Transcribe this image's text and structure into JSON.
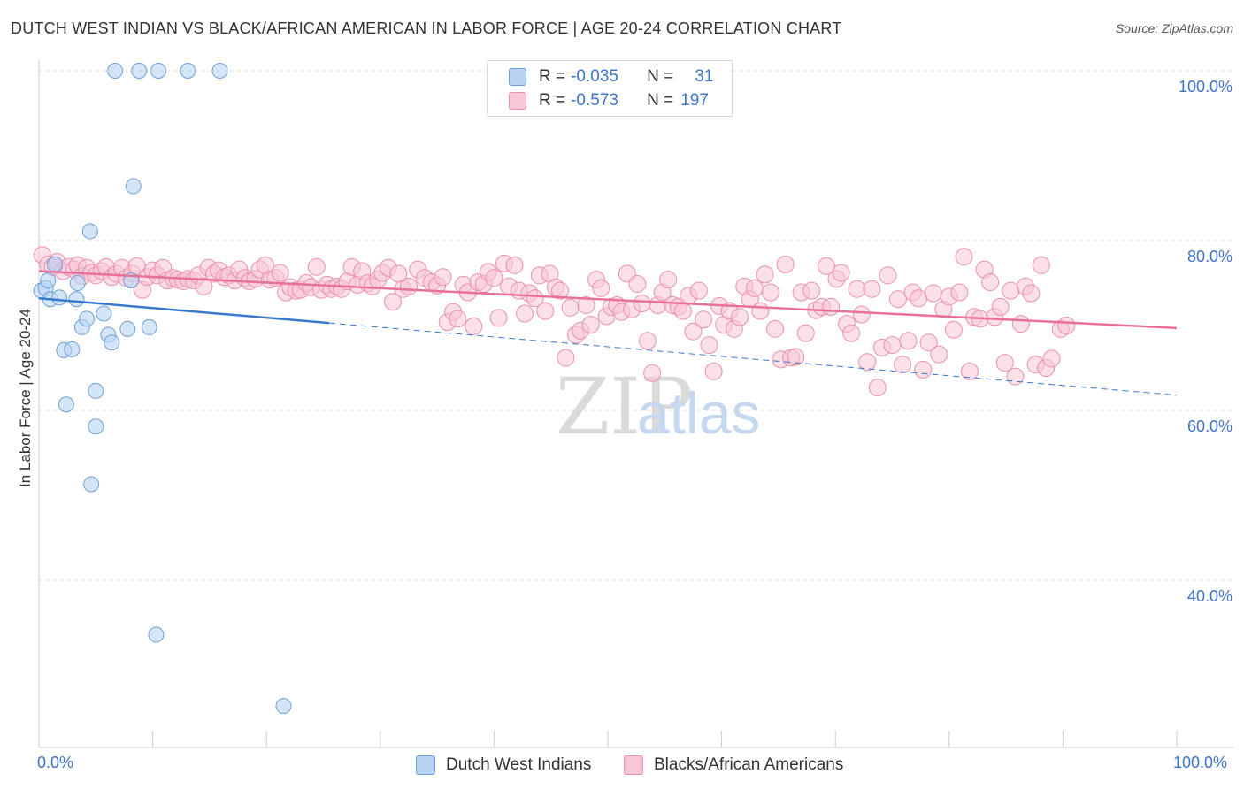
{
  "title": "DUTCH WEST INDIAN VS BLACK/AFRICAN AMERICAN IN LABOR FORCE | AGE 20-24 CORRELATION CHART",
  "source": "Source: ZipAtlas.com",
  "watermark": {
    "zip": "ZIP",
    "atlas": "atlas"
  },
  "legend": {
    "series1": {
      "r_label": "R =",
      "r_value": "-0.035",
      "n_label": "N =",
      "n_value": "31"
    },
    "series2": {
      "r_label": "R =",
      "r_value": "-0.573",
      "n_label": "N =",
      "n_value": "197"
    }
  },
  "bottom_legend": {
    "series1": "Dutch West Indians",
    "series2": "Blacks/African Americans"
  },
  "colors": {
    "series1_fill": "#b8d3f3",
    "series1_stroke": "#6f9fd8",
    "series1_line": "#3a78d0",
    "series2_fill": "#f8c7d6",
    "series2_stroke": "#ec8fac",
    "series2_line": "#e8719a",
    "tick_label": "#3d74c9",
    "grid": "#dddddd"
  },
  "chart_data": {
    "type": "scatter",
    "title": "DUTCH WEST INDIAN VS BLACK/AFRICAN AMERICAN IN LABOR FORCE | AGE 20-24 CORRELATION CHART",
    "xlabel": "",
    "ylabel": "In Labor Force | Age 20-24",
    "xlim": [
      0,
      100
    ],
    "ylim": [
      20,
      100
    ],
    "x_tick_labels": {
      "left": "0.0%",
      "right": "100.0%"
    },
    "y_ticks": [
      {
        "value": 100,
        "label": "100.0%"
      },
      {
        "value": 80,
        "label": "80.0%"
      },
      {
        "value": 60,
        "label": "60.0%"
      },
      {
        "value": 40,
        "label": "40.0%"
      }
    ],
    "series": [
      {
        "name": "Dutch West Indians",
        "r": -0.035,
        "n": 31,
        "trend": {
          "x0": 0,
          "y0": 73.2,
          "x1": 25.5,
          "y1": 70.3,
          "dash_to_x": 100,
          "dash_to_y": 61.8
        },
        "points": [
          [
            0.2,
            74.1
          ],
          [
            0.6,
            74.4
          ],
          [
            0.8,
            75.3
          ],
          [
            1.0,
            73.1
          ],
          [
            1.4,
            77.2
          ],
          [
            1.8,
            73.3
          ],
          [
            3.3,
            73.1
          ],
          [
            3.4,
            75.0
          ],
          [
            2.2,
            67.1
          ],
          [
            2.9,
            67.2
          ],
          [
            2.4,
            60.7
          ],
          [
            3.8,
            69.8
          ],
          [
            4.2,
            70.8
          ],
          [
            4.5,
            81.1
          ],
          [
            5.7,
            71.4
          ],
          [
            6.1,
            68.9
          ],
          [
            6.4,
            68.0
          ],
          [
            7.8,
            69.6
          ],
          [
            8.1,
            75.3
          ],
          [
            8.3,
            86.4
          ],
          [
            9.7,
            69.8
          ],
          [
            5.0,
            62.3
          ],
          [
            5.0,
            58.1
          ],
          [
            4.6,
            51.3
          ],
          [
            6.7,
            100.0
          ],
          [
            8.8,
            100.0
          ],
          [
            10.5,
            100.0
          ],
          [
            13.1,
            100.0
          ],
          [
            15.9,
            100.0
          ],
          [
            10.3,
            33.6
          ],
          [
            21.5,
            25.2
          ]
        ]
      },
      {
        "name": "Blacks/African Americans",
        "r": -0.573,
        "n": 197,
        "trend": {
          "x0": 0,
          "y0": 76.4,
          "x1": 100,
          "y1": 69.7
        },
        "points": [
          [
            0.3,
            78.3
          ],
          [
            0.8,
            77.2
          ],
          [
            1.2,
            76.9
          ],
          [
            1.6,
            77.5
          ],
          [
            2.1,
            76.4
          ],
          [
            2.6,
            76.9
          ],
          [
            3.1,
            76.6
          ],
          [
            3.4,
            77.1
          ],
          [
            3.8,
            75.8
          ],
          [
            4.2,
            76.8
          ],
          [
            4.6,
            76.2
          ],
          [
            5.0,
            75.9
          ],
          [
            5.5,
            76.4
          ],
          [
            5.9,
            76.9
          ],
          [
            6.4,
            75.7
          ],
          [
            6.8,
            76.1
          ],
          [
            7.3,
            76.8
          ],
          [
            7.7,
            75.6
          ],
          [
            8.2,
            76.1
          ],
          [
            8.6,
            77.0
          ],
          [
            9.1,
            74.2
          ],
          [
            9.5,
            75.7
          ],
          [
            10.0,
            76.5
          ],
          [
            10.4,
            75.9
          ],
          [
            10.9,
            76.8
          ],
          [
            11.3,
            75.3
          ],
          [
            11.8,
            75.6
          ],
          [
            12.2,
            75.4
          ],
          [
            12.7,
            75.2
          ],
          [
            13.1,
            75.5
          ],
          [
            13.6,
            75.3
          ],
          [
            14.0,
            75.9
          ],
          [
            14.5,
            74.6
          ],
          [
            14.9,
            76.8
          ],
          [
            15.4,
            76.1
          ],
          [
            15.8,
            76.5
          ],
          [
            16.3,
            75.7
          ],
          [
            16.7,
            75.9
          ],
          [
            17.2,
            75.3
          ],
          [
            17.6,
            76.6
          ],
          [
            18.1,
            75.6
          ],
          [
            18.5,
            75.2
          ],
          [
            19.0,
            75.5
          ],
          [
            19.4,
            76.6
          ],
          [
            19.9,
            77.1
          ],
          [
            20.3,
            75.4
          ],
          [
            20.8,
            75.6
          ],
          [
            21.2,
            76.2
          ],
          [
            21.7,
            73.9
          ],
          [
            22.1,
            74.5
          ],
          [
            22.6,
            74.1
          ],
          [
            23.0,
            74.2
          ],
          [
            23.5,
            75.0
          ],
          [
            23.9,
            74.5
          ],
          [
            24.4,
            76.9
          ],
          [
            24.8,
            74.2
          ],
          [
            25.3,
            74.8
          ],
          [
            25.7,
            74.3
          ],
          [
            26.2,
            74.6
          ],
          [
            26.6,
            74.3
          ],
          [
            27.1,
            75.2
          ],
          [
            27.5,
            76.9
          ],
          [
            28.0,
            74.8
          ],
          [
            28.4,
            76.4
          ],
          [
            28.9,
            75.0
          ],
          [
            29.3,
            74.6
          ],
          [
            29.8,
            75.4
          ],
          [
            30.2,
            76.2
          ],
          [
            30.7,
            76.8
          ],
          [
            31.1,
            72.8
          ],
          [
            31.6,
            76.1
          ],
          [
            32.0,
            74.3
          ],
          [
            32.5,
            74.6
          ],
          [
            33.3,
            76.6
          ],
          [
            33.9,
            75.6
          ],
          [
            34.5,
            75.1
          ],
          [
            35.0,
            74.7
          ],
          [
            35.5,
            75.7
          ],
          [
            35.9,
            70.4
          ],
          [
            36.4,
            71.6
          ],
          [
            36.8,
            70.8
          ],
          [
            37.3,
            74.8
          ],
          [
            37.7,
            73.9
          ],
          [
            38.2,
            69.9
          ],
          [
            38.6,
            75.1
          ],
          [
            39.1,
            74.9
          ],
          [
            39.5,
            76.3
          ],
          [
            40.0,
            75.6
          ],
          [
            40.4,
            70.9
          ],
          [
            40.9,
            77.3
          ],
          [
            41.3,
            74.6
          ],
          [
            41.8,
            77.1
          ],
          [
            42.2,
            74.1
          ],
          [
            42.7,
            71.4
          ],
          [
            43.1,
            73.8
          ],
          [
            43.6,
            73.2
          ],
          [
            44.0,
            75.9
          ],
          [
            44.5,
            71.7
          ],
          [
            44.9,
            76.1
          ],
          [
            45.4,
            74.5
          ],
          [
            45.8,
            74.1
          ],
          [
            46.3,
            66.2
          ],
          [
            46.7,
            72.1
          ],
          [
            47.2,
            68.9
          ],
          [
            47.6,
            69.4
          ],
          [
            48.1,
            72.4
          ],
          [
            48.5,
            70.1
          ],
          [
            49.0,
            75.4
          ],
          [
            49.4,
            74.4
          ],
          [
            49.9,
            71.1
          ],
          [
            50.3,
            72.2
          ],
          [
            50.8,
            72.4
          ],
          [
            51.2,
            71.6
          ],
          [
            51.7,
            76.1
          ],
          [
            52.1,
            71.9
          ],
          [
            52.6,
            74.9
          ],
          [
            53.0,
            72.6
          ],
          [
            53.5,
            68.2
          ],
          [
            53.9,
            64.4
          ],
          [
            54.4,
            72.4
          ],
          [
            54.8,
            73.9
          ],
          [
            55.3,
            75.4
          ],
          [
            55.7,
            72.4
          ],
          [
            56.2,
            72.2
          ],
          [
            56.6,
            71.7
          ],
          [
            57.1,
            73.5
          ],
          [
            57.5,
            69.3
          ],
          [
            58.0,
            74.1
          ],
          [
            58.4,
            70.7
          ],
          [
            58.9,
            67.7
          ],
          [
            59.3,
            64.6
          ],
          [
            59.8,
            72.3
          ],
          [
            60.2,
            70.1
          ],
          [
            60.7,
            71.7
          ],
          [
            61.1,
            69.6
          ],
          [
            61.6,
            71.0
          ],
          [
            62.0,
            74.6
          ],
          [
            62.5,
            73.1
          ],
          [
            62.9,
            74.4
          ],
          [
            63.4,
            71.7
          ],
          [
            63.8,
            76.0
          ],
          [
            64.3,
            73.9
          ],
          [
            64.7,
            69.6
          ],
          [
            65.2,
            66.0
          ],
          [
            65.6,
            77.2
          ],
          [
            66.1,
            66.2
          ],
          [
            66.5,
            66.3
          ],
          [
            67.0,
            73.9
          ],
          [
            67.4,
            69.1
          ],
          [
            67.9,
            74.1
          ],
          [
            68.3,
            71.8
          ],
          [
            68.8,
            72.2
          ],
          [
            69.2,
            77.0
          ],
          [
            69.6,
            72.2
          ],
          [
            70.1,
            75.5
          ],
          [
            70.5,
            76.2
          ],
          [
            71.0,
            70.2
          ],
          [
            71.4,
            69.1
          ],
          [
            71.9,
            74.3
          ],
          [
            72.3,
            71.3
          ],
          [
            72.8,
            65.7
          ],
          [
            73.2,
            74.3
          ],
          [
            73.7,
            62.7
          ],
          [
            74.1,
            67.4
          ],
          [
            74.6,
            75.9
          ],
          [
            75.0,
            67.7
          ],
          [
            75.5,
            73.1
          ],
          [
            75.9,
            65.4
          ],
          [
            76.4,
            68.2
          ],
          [
            76.8,
            73.9
          ],
          [
            77.3,
            73.2
          ],
          [
            77.7,
            64.8
          ],
          [
            78.2,
            68.0
          ],
          [
            78.6,
            73.8
          ],
          [
            79.1,
            66.6
          ],
          [
            79.5,
            71.9
          ],
          [
            80.0,
            73.4
          ],
          [
            80.4,
            69.5
          ],
          [
            80.9,
            73.9
          ],
          [
            81.3,
            78.1
          ],
          [
            81.8,
            64.6
          ],
          [
            82.2,
            71.0
          ],
          [
            82.7,
            70.8
          ],
          [
            83.1,
            76.6
          ],
          [
            83.6,
            75.1
          ],
          [
            84.0,
            71.0
          ],
          [
            84.5,
            72.2
          ],
          [
            84.9,
            65.6
          ],
          [
            85.4,
            74.1
          ],
          [
            85.8,
            64.0
          ],
          [
            86.3,
            70.2
          ],
          [
            86.7,
            74.6
          ],
          [
            87.2,
            73.8
          ],
          [
            87.6,
            65.4
          ],
          [
            88.1,
            77.1
          ],
          [
            88.5,
            65.0
          ],
          [
            89.0,
            66.1
          ],
          [
            89.8,
            69.6
          ],
          [
            90.3,
            70.0
          ]
        ]
      }
    ]
  }
}
